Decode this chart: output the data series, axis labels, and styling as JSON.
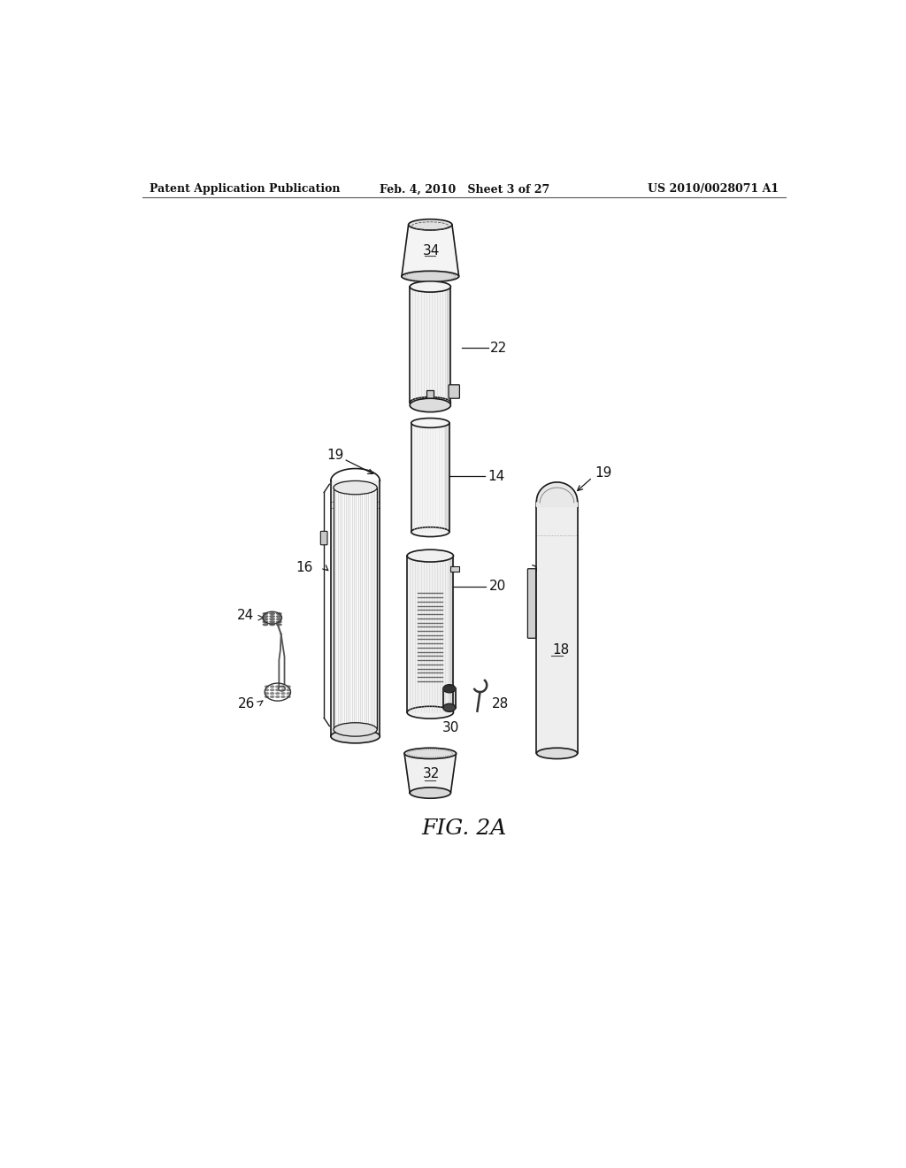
{
  "background_color": "#ffffff",
  "header_left": "Patent Application Publication",
  "header_center": "Feb. 4, 2010   Sheet 3 of 27",
  "header_right": "US 2010/0028071 A1",
  "figure_label": "FIG. 2A",
  "line_color": "#1a1a1a",
  "fill_color": "#f0f0f0",
  "dark_fill": "#555555",
  "hatch_color": "#888888"
}
